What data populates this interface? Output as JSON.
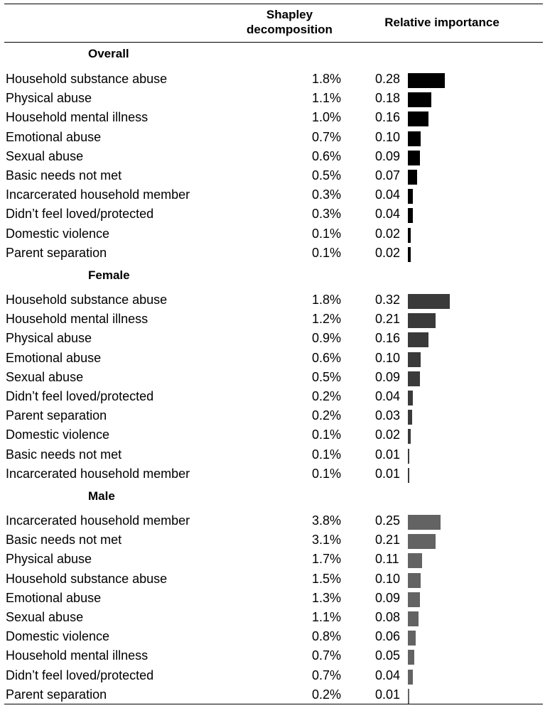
{
  "header": {
    "shapley": "Shapley\ndecomposition",
    "relative": "Relative importance"
  },
  "chart_data": {
    "type": "bar",
    "orientation": "horizontal",
    "columns": [
      "Shapley decomposition",
      "Relative importance"
    ],
    "groups": [
      {
        "name": "Overall",
        "color": "#000000",
        "rows": [
          {
            "label": "Household substance abuse",
            "shapley": "1.8%",
            "relative": 0.28
          },
          {
            "label": "Physical abuse",
            "shapley": "1.1%",
            "relative": 0.18
          },
          {
            "label": "Household mental illness",
            "shapley": "1.0%",
            "relative": 0.16
          },
          {
            "label": "Emotional abuse",
            "shapley": "0.7%",
            "relative": 0.1
          },
          {
            "label": "Sexual abuse",
            "shapley": "0.6%",
            "relative": 0.09
          },
          {
            "label": "Basic needs not met",
            "shapley": "0.5%",
            "relative": 0.07
          },
          {
            "label": "Incarcerated household member",
            "shapley": "0.3%",
            "relative": 0.04
          },
          {
            "label": "Didn’t feel loved/protected",
            "shapley": "0.3%",
            "relative": 0.04
          },
          {
            "label": "Domestic violence",
            "shapley": "0.1%",
            "relative": 0.02
          },
          {
            "label": "Parent separation",
            "shapley": "0.1%",
            "relative": 0.02
          }
        ]
      },
      {
        "name": "Female",
        "color": "#3a3a3a",
        "rows": [
          {
            "label": "Household substance abuse",
            "shapley": "1.8%",
            "relative": 0.32
          },
          {
            "label": "Household mental illness",
            "shapley": "1.2%",
            "relative": 0.21
          },
          {
            "label": "Physical abuse",
            "shapley": "0.9%",
            "relative": 0.16
          },
          {
            "label": "Emotional abuse",
            "shapley": "0.6%",
            "relative": 0.1
          },
          {
            "label": "Sexual abuse",
            "shapley": "0.5%",
            "relative": 0.09
          },
          {
            "label": "Didn’t feel loved/protected",
            "shapley": "0.2%",
            "relative": 0.04
          },
          {
            "label": "Parent separation",
            "shapley": "0.2%",
            "relative": 0.03
          },
          {
            "label": "Domestic violence",
            "shapley": "0.1%",
            "relative": 0.02
          },
          {
            "label": "Basic needs not met",
            "shapley": "0.1%",
            "relative": 0.01
          },
          {
            "label": "Incarcerated household member",
            "shapley": "0.1%",
            "relative": 0.01
          }
        ]
      },
      {
        "name": "Male",
        "color": "#636363",
        "rows": [
          {
            "label": "Incarcerated household member",
            "shapley": "3.8%",
            "relative": 0.25
          },
          {
            "label": "Basic needs not met",
            "shapley": "3.1%",
            "relative": 0.21
          },
          {
            "label": "Physical abuse",
            "shapley": "1.7%",
            "relative": 0.11
          },
          {
            "label": "Household substance abuse",
            "shapley": "1.5%",
            "relative": 0.1
          },
          {
            "label": "Emotional abuse",
            "shapley": "1.3%",
            "relative": 0.09
          },
          {
            "label": "Sexual abuse",
            "shapley": "1.1%",
            "relative": 0.08
          },
          {
            "label": "Domestic violence",
            "shapley": "0.8%",
            "relative": 0.06
          },
          {
            "label": "Household mental illness",
            "shapley": "0.7%",
            "relative": 0.05
          },
          {
            "label": "Didn’t feel loved/protected",
            "shapley": "0.7%",
            "relative": 0.04
          },
          {
            "label": "Parent separation",
            "shapley": "0.2%",
            "relative": 0.01
          }
        ]
      }
    ]
  }
}
